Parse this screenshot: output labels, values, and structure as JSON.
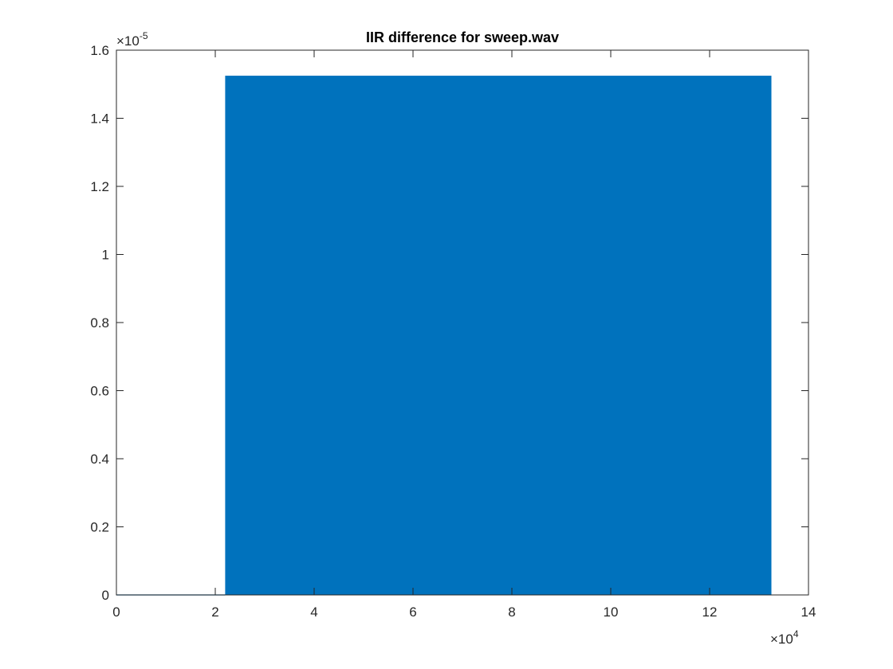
{
  "chart_data": {
    "type": "area",
    "title": "IIR difference for sweep.wav",
    "xlabel": "",
    "ylabel": "",
    "xlim": [
      0,
      14
    ],
    "ylim": [
      0,
      1.6
    ],
    "x_ticks": [
      0,
      2,
      4,
      6,
      8,
      10,
      12,
      14
    ],
    "y_ticks": [
      0,
      0.2,
      0.4,
      0.6,
      0.8,
      1,
      1.2,
      1.4,
      1.6
    ],
    "x_tick_labels": [
      "0",
      "2",
      "4",
      "6",
      "8",
      "10",
      "12",
      "14"
    ],
    "y_tick_labels": [
      "0",
      "0.2",
      "0.4",
      "0.6",
      "0.8",
      "1",
      "1.2",
      "1.4",
      "1.6"
    ],
    "x_exponent": {
      "base": "×10",
      "power": "4"
    },
    "y_exponent": {
      "base": "×10",
      "power": "-5"
    },
    "grid": false,
    "box": true,
    "series": [
      {
        "color": "#0072BD",
        "x": [
          0,
          2.2,
          2.2,
          13.25,
          13.25
        ],
        "y": [
          0,
          0,
          1.525,
          1.525,
          0
        ],
        "note_shape": "dense oscillation between 0 and 1.525 over 2.2–13.25"
      }
    ],
    "dense_band": {
      "x_start": 2.2,
      "x_end": 13.25,
      "y_low": 0,
      "y_high": 1.525
    }
  }
}
